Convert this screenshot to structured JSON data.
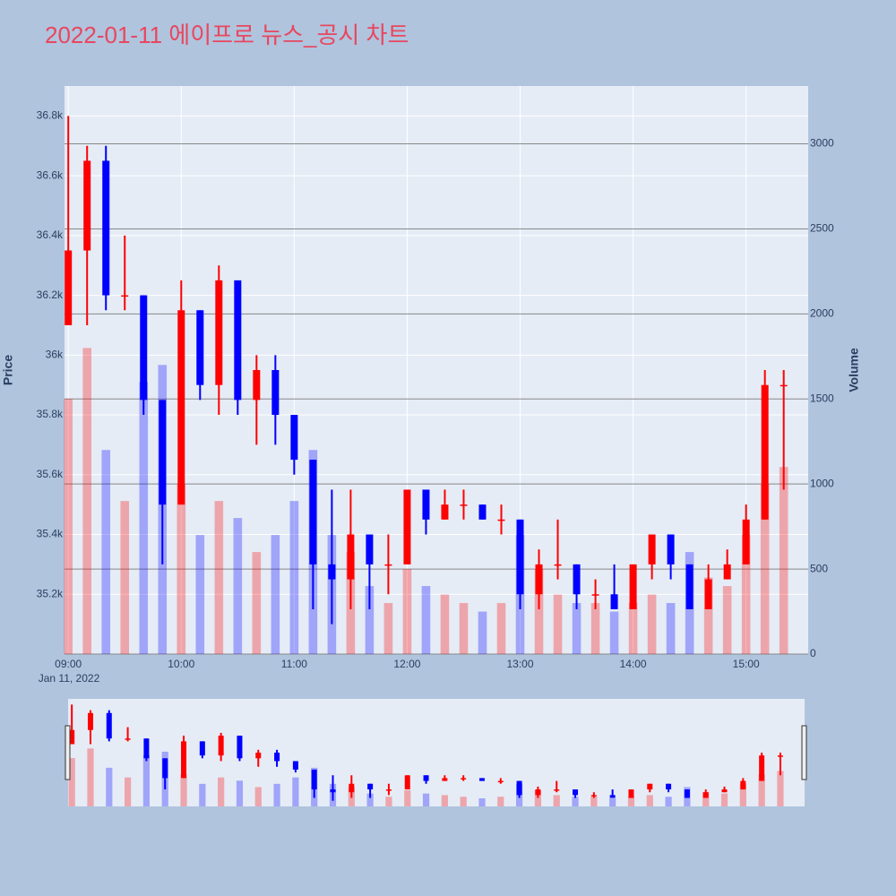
{
  "chart_data": {
    "type": "candlestick",
    "title": "2022-01-11 에이프로 뉴스_공시 차트",
    "y_label": "Price",
    "y2_label": "Volume",
    "x_sublabel": "Jan 11, 2022",
    "x": [
      "09:00",
      "09:10",
      "09:20",
      "09:30",
      "09:40",
      "09:50",
      "10:00",
      "10:10",
      "10:20",
      "10:30",
      "10:40",
      "10:50",
      "11:00",
      "11:10",
      "11:20",
      "11:30",
      "11:40",
      "11:50",
      "12:00",
      "12:10",
      "12:20",
      "12:30",
      "12:40",
      "12:50",
      "13:00",
      "13:10",
      "13:20",
      "13:30",
      "13:40",
      "13:50",
      "14:00",
      "14:10",
      "14:20",
      "14:30",
      "14:40",
      "14:50",
      "15:00",
      "15:10",
      "15:20"
    ],
    "open": [
      36100,
      36350,
      36650,
      36200,
      36200,
      35850,
      35500,
      36150,
      35900,
      36250,
      35850,
      35950,
      35800,
      35650,
      35300,
      35250,
      35400,
      35300,
      35300,
      35550,
      35450,
      35500,
      35500,
      35450,
      35450,
      35200,
      35300,
      35300,
      35200,
      35200,
      35150,
      35300,
      35400,
      35300,
      35150,
      35250,
      35300,
      35450,
      35900
    ],
    "high": [
      36800,
      36700,
      36700,
      36400,
      36200,
      35850,
      36250,
      36150,
      36300,
      36250,
      36000,
      36000,
      35800,
      35650,
      35550,
      35550,
      35400,
      35400,
      35550,
      35550,
      35550,
      35550,
      35500,
      35500,
      35450,
      35350,
      35450,
      35300,
      35250,
      35300,
      35300,
      35400,
      35400,
      35300,
      35300,
      35350,
      35500,
      35950,
      35950
    ],
    "low": [
      36100,
      36100,
      36150,
      36150,
      35800,
      35300,
      35500,
      35850,
      35800,
      35800,
      35700,
      35700,
      35600,
      35150,
      35100,
      35150,
      35150,
      35200,
      35300,
      35400,
      35450,
      35450,
      35450,
      35400,
      35150,
      35150,
      35250,
      35150,
      35150,
      35150,
      35150,
      35250,
      35250,
      35150,
      35150,
      35250,
      35300,
      35450,
      35550
    ],
    "close": [
      36350,
      36650,
      36200,
      36200,
      35850,
      35500,
      36150,
      35900,
      36250,
      35850,
      35950,
      35800,
      35650,
      35300,
      35250,
      35400,
      35300,
      35300,
      35550,
      35450,
      35500,
      35500,
      35450,
      35450,
      35200,
      35300,
      35300,
      35200,
      35200,
      35150,
      35300,
      35400,
      35300,
      35150,
      35250,
      35300,
      35450,
      35900,
      35900
    ],
    "volume": [
      1500,
      1800,
      1200,
      900,
      1600,
      1700,
      1000,
      700,
      900,
      800,
      600,
      700,
      900,
      1200,
      700,
      600,
      400,
      300,
      500,
      400,
      350,
      300,
      250,
      300,
      700,
      500,
      350,
      300,
      300,
      250,
      300,
      350,
      300,
      600,
      450,
      400,
      700,
      1000,
      1100
    ],
    "increasing_color": "#ff0000",
    "decreasing_color": "#0000ff",
    "xlim": [
      "08:58",
      "15:33"
    ],
    "xticks": [
      "09:00",
      "10:00",
      "11:00",
      "12:00",
      "13:00",
      "14:00",
      "15:00"
    ],
    "ylim": [
      35000,
      36900
    ],
    "yticks": [
      {
        "value": 35200,
        "label": "35.2k"
      },
      {
        "value": 35400,
        "label": "35.4k"
      },
      {
        "value": 35600,
        "label": "35.6k"
      },
      {
        "value": 35800,
        "label": "35.8k"
      },
      {
        "value": 36000,
        "label": "36k"
      },
      {
        "value": 36200,
        "label": "36.2k"
      },
      {
        "value": 36400,
        "label": "36.4k"
      },
      {
        "value": 36600,
        "label": "36.6k"
      },
      {
        "value": 36800,
        "label": "36.8k"
      }
    ],
    "y2lim": [
      0,
      3340
    ],
    "y2ticks": [
      0,
      500,
      1000,
      1500,
      2000,
      2500,
      3000
    ],
    "grid": true,
    "range_slider": true
  }
}
